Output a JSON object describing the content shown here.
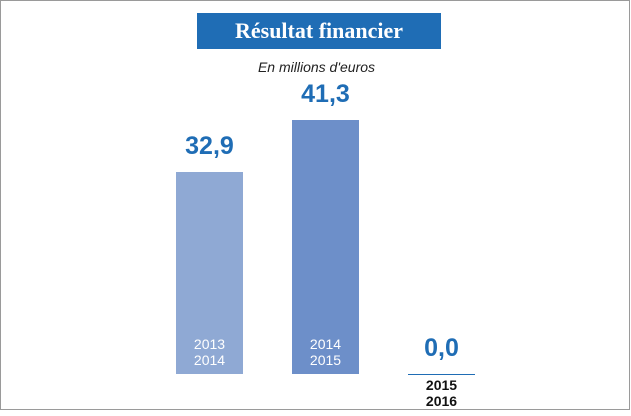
{
  "chart_data": {
    "type": "bar",
    "title": "Résultat financier",
    "subtitle": "En millions d'euros",
    "categories": [
      "2013\n2014",
      "2014\n2015",
      "2015\n2016"
    ],
    "values": [
      32.9,
      41.3,
      0.0
    ],
    "value_labels": [
      "32,9",
      "41,3",
      "0,0"
    ],
    "colors": [
      "#8fa9d4",
      "#6d8fc9",
      "#5b84c4"
    ]
  }
}
